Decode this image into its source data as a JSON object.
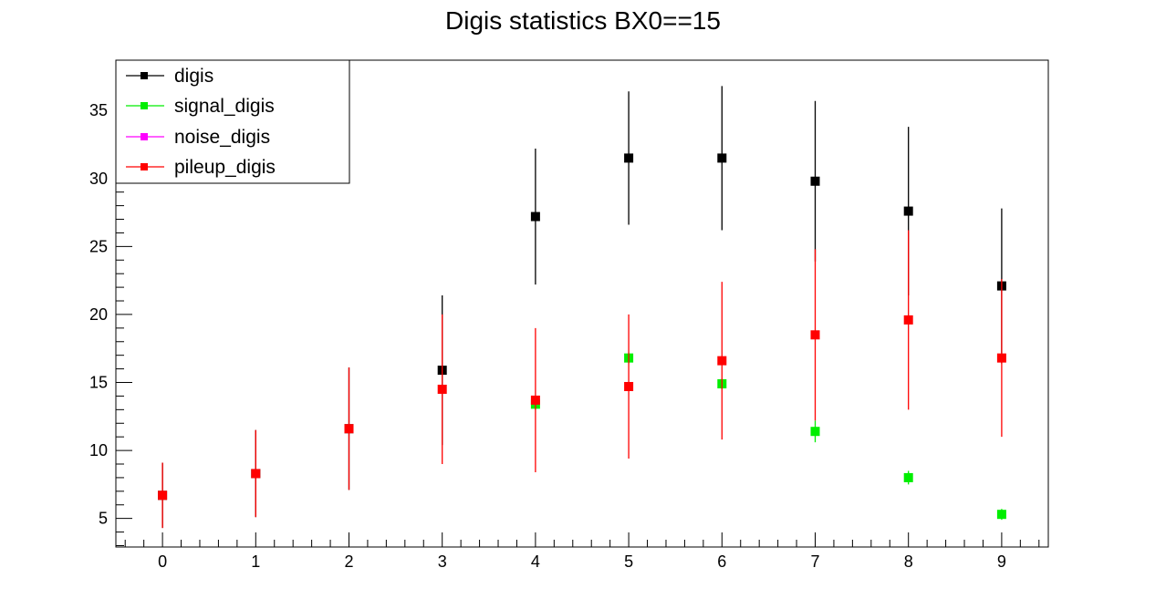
{
  "chart_data": {
    "type": "scatter",
    "title": "Digis statistics BX0==15",
    "xlabel": "",
    "ylabel": "",
    "xlim": [
      -0.5,
      9.5
    ],
    "ylim": [
      2.9,
      38.7
    ],
    "x_ticks": [
      "0",
      "1",
      "2",
      "3",
      "4",
      "5",
      "6",
      "7",
      "8",
      "9"
    ],
    "y_ticks": [
      "5",
      "10",
      "15",
      "20",
      "25",
      "30",
      "35"
    ],
    "grid": false,
    "legend_position": "top-left",
    "series": [
      {
        "name": "digis",
        "color": "#000000",
        "points": [
          {
            "x": 0,
            "y": 6.7,
            "err": 2.4
          },
          {
            "x": 1,
            "y": 8.3,
            "err": 3.2
          },
          {
            "x": 2,
            "y": 11.6,
            "err": 4.5
          },
          {
            "x": 3,
            "y": 15.9,
            "err": 5.5
          },
          {
            "x": 4,
            "y": 27.2,
            "err": 5.0
          },
          {
            "x": 5,
            "y": 31.5,
            "err": 4.9
          },
          {
            "x": 6,
            "y": 31.5,
            "err": 5.3
          },
          {
            "x": 7,
            "y": 29.8,
            "err": 5.9
          },
          {
            "x": 8,
            "y": 27.6,
            "err": 6.2
          },
          {
            "x": 9,
            "y": 22.1,
            "err": 5.7
          }
        ]
      },
      {
        "name": "signal_digis",
        "color": "#00ee00",
        "points": [
          {
            "x": 4,
            "y": 13.4,
            "err": 0.4
          },
          {
            "x": 5,
            "y": 16.8,
            "err": 0.4
          },
          {
            "x": 6,
            "y": 14.9,
            "err": 0.4
          },
          {
            "x": 7,
            "y": 11.4,
            "err": 0.8
          },
          {
            "x": 8,
            "y": 8.0,
            "err": 0.5
          },
          {
            "x": 9,
            "y": 5.3,
            "err": 0.4
          }
        ]
      },
      {
        "name": "noise_digis",
        "color": "#ff00ff",
        "points": []
      },
      {
        "name": "pileup_digis",
        "color": "#ff0000",
        "points": [
          {
            "x": 0,
            "y": 6.7,
            "err": 2.4
          },
          {
            "x": 1,
            "y": 8.3,
            "err": 3.2
          },
          {
            "x": 2,
            "y": 11.6,
            "err": 4.5
          },
          {
            "x": 3,
            "y": 14.5,
            "err": 5.5
          },
          {
            "x": 4,
            "y": 13.7,
            "err": 5.3
          },
          {
            "x": 5,
            "y": 14.7,
            "err": 5.3
          },
          {
            "x": 6,
            "y": 16.6,
            "err": 5.8
          },
          {
            "x": 7,
            "y": 18.5,
            "err": 6.3
          },
          {
            "x": 8,
            "y": 19.6,
            "err": 6.6
          },
          {
            "x": 9,
            "y": 16.8,
            "err": 5.8
          }
        ]
      }
    ]
  }
}
